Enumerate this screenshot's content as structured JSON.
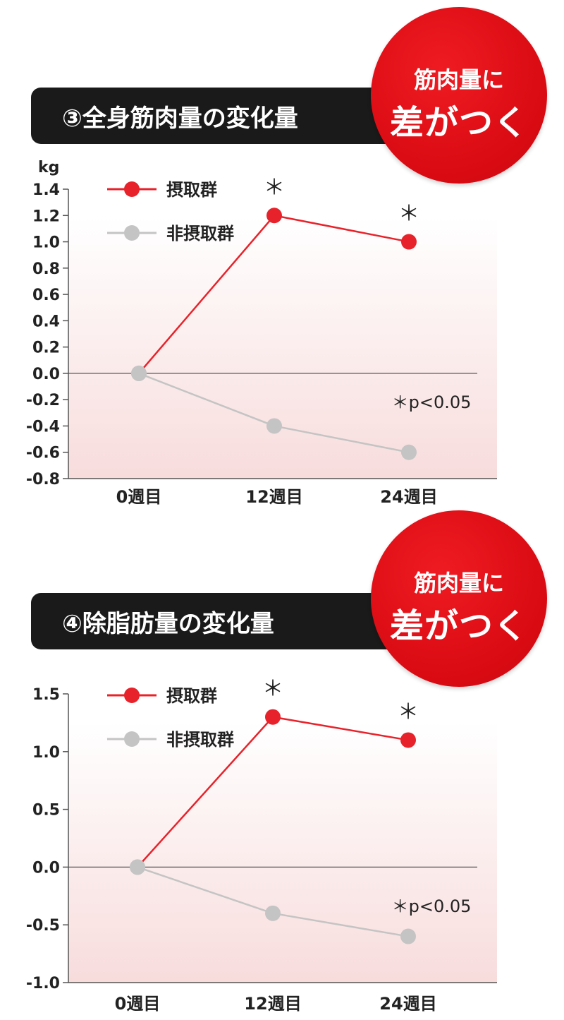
{
  "colors": {
    "intake": "#e8222a",
    "non_intake": "#c4c4c4",
    "title_bg": "#1a1a1a",
    "badge": "#d90a12"
  },
  "badge": {
    "line1": "筋肉量に",
    "line2": "差がつく"
  },
  "charts": [
    {
      "title": "③全身筋肉量の変化量",
      "significance_note": "＊p<0.05"
    },
    {
      "title": "④除脂肪量の変化量",
      "significance_note": "＊p<0.05"
    }
  ],
  "chart_data": [
    {
      "type": "line",
      "title": "③全身筋肉量の変化量",
      "ylabel": "kg",
      "xlabel": "",
      "categories": [
        "0週目",
        "12週目",
        "24週目"
      ],
      "ylim": [
        -0.8,
        1.4
      ],
      "yticks": [
        "1.4",
        "1.2",
        "1.0",
        "0.8",
        "0.6",
        "0.4",
        "0.2",
        "0.0",
        "-0.2",
        "-0.4",
        "-0.6",
        "-0.8"
      ],
      "legend_position": "top-left",
      "grid": false,
      "series": [
        {
          "name": "摂取群",
          "values": [
            0.0,
            1.2,
            1.0
          ],
          "significant": [
            false,
            true,
            true
          ]
        },
        {
          "name": "非摂取群",
          "values": [
            0.0,
            -0.4,
            -0.6
          ],
          "significant": [
            false,
            false,
            false
          ]
        }
      ],
      "annotations": [
        "＊",
        "＊p<0.05"
      ]
    },
    {
      "type": "line",
      "title": "④除脂肪量の変化量",
      "ylabel": "",
      "xlabel": "",
      "categories": [
        "0週目",
        "12週目",
        "24週目"
      ],
      "ylim": [
        -1.0,
        1.5
      ],
      "yticks": [
        "1.5",
        "1.0",
        "0.5",
        "0.0",
        "-0.5",
        "-1.0"
      ],
      "legend_position": "top-left",
      "grid": false,
      "series": [
        {
          "name": "摂取群",
          "values": [
            0.0,
            1.3,
            1.1
          ],
          "significant": [
            false,
            true,
            true
          ]
        },
        {
          "name": "非摂取群",
          "values": [
            0.0,
            -0.4,
            -0.6
          ],
          "significant": [
            false,
            false,
            false
          ]
        }
      ],
      "annotations": [
        "＊",
        "＊p<0.05"
      ]
    }
  ]
}
